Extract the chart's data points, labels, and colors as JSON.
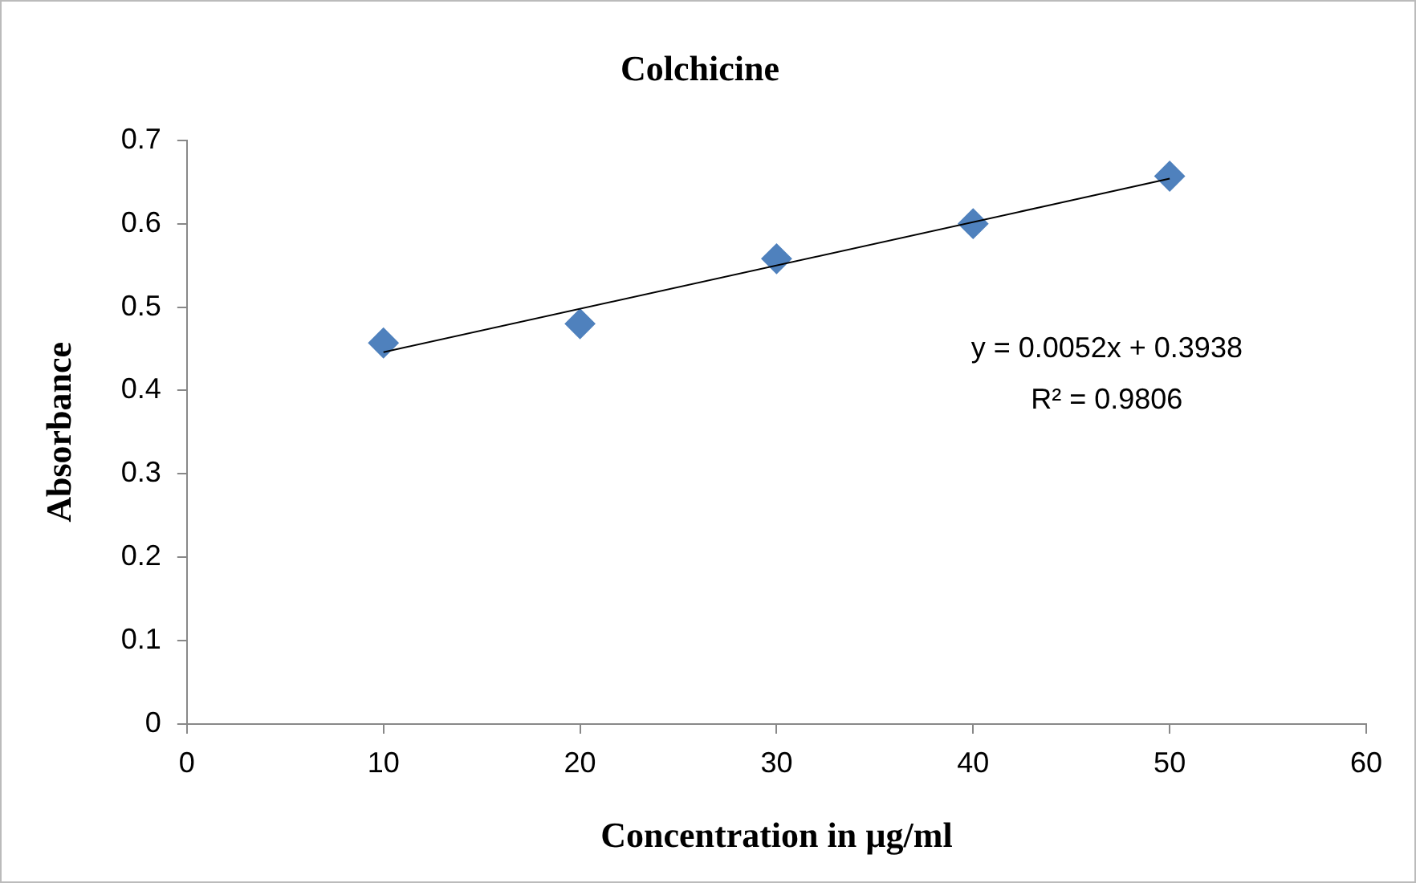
{
  "chart_data": {
    "type": "scatter",
    "title": "Colchicine",
    "xlabel": "Concentration in µg/ml",
    "ylabel": "Absorbance",
    "xlim": [
      0,
      60
    ],
    "xticks": [
      0,
      10,
      20,
      30,
      40,
      50,
      60
    ],
    "ylim": [
      0,
      0.7
    ],
    "yticks": [
      0,
      0.1,
      0.2,
      0.3,
      0.4,
      0.5,
      0.6,
      0.7
    ],
    "grid": false,
    "legend": false,
    "series": [
      {
        "color": "#4f81bd",
        "marker": "diamond",
        "x": [
          10,
          20,
          30,
          40,
          50
        ],
        "values": [
          0.457,
          0.48,
          0.558,
          0.6,
          0.657
        ]
      },
      {
        "type": "line",
        "color": "#000000",
        "marker": "none",
        "x": [
          10,
          50
        ],
        "values": [
          0.446,
          0.654
        ]
      }
    ],
    "annotations": [
      "y = 0.0052x + 0.3938",
      "R² = 0.9806"
    ]
  }
}
